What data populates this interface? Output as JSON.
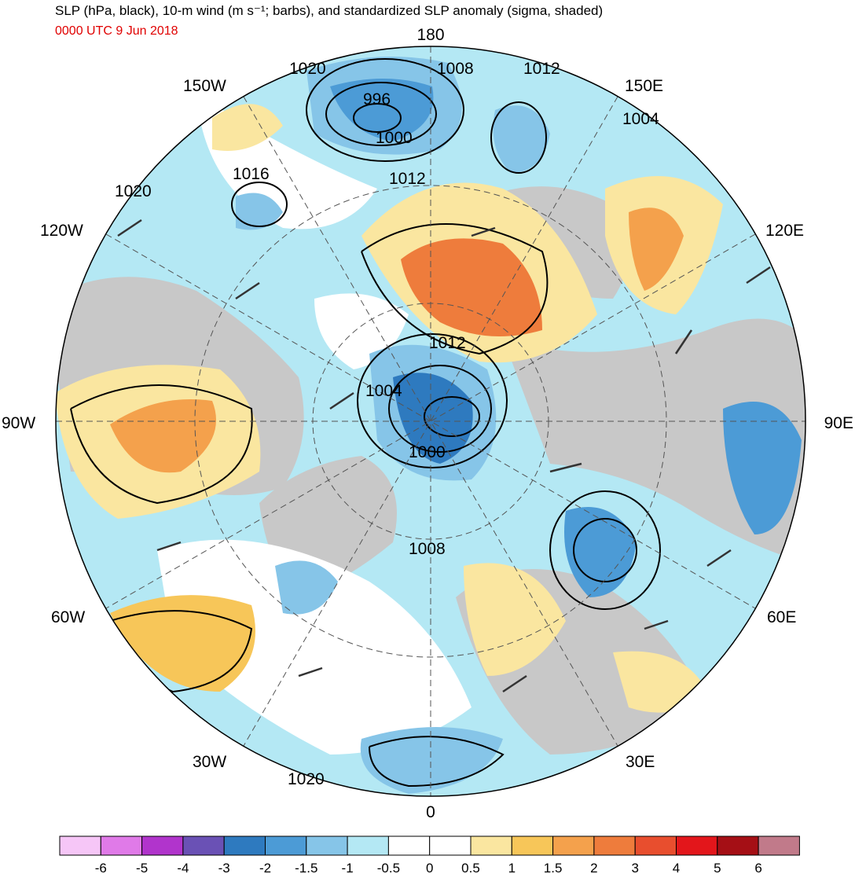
{
  "header": {
    "title": "SLP (hPa, black), 10-m wind (m s⁻¹; barbs), and standardized SLP anomaly (sigma, shaded)",
    "valid_time": "0000 UTC 9 Jun 2018"
  },
  "map": {
    "projection": "north polar stereographic",
    "longitude_labels": {
      "top": "180",
      "bottom": "0",
      "left": "90W",
      "right": "90E",
      "upper_left_outer": "150W",
      "upper_left_inner": "120W",
      "lower_left_upper": "60W",
      "lower_left_lower": "30W",
      "upper_right_outer": "150E",
      "upper_right_inner": "120E",
      "lower_right_upper": "60E",
      "lower_right_lower": "30E"
    },
    "isobar_labels": {
      "top_left": "1020",
      "top_center": "1008",
      "top_right": "1012",
      "low_center": "996",
      "low_lower": "1000",
      "right_1004": "1004",
      "west_1016": "1016",
      "west_1020": "1020",
      "north_1012": "1012",
      "pole_1012": "1012",
      "pole_1004": "1004",
      "pole_1000": "1000",
      "atlantic_1008": "1008",
      "bottom_1020": "1020"
    }
  },
  "legend": {
    "colors": [
      "#f6c6f7",
      "#e07ae8",
      "#b134cc",
      "#6a51b5",
      "#2e7abf",
      "#4c9bd6",
      "#86c5e8",
      "#b4e8f4",
      "#ffffff",
      "#ffffff",
      "#fae6a0",
      "#f7c659",
      "#f4a14c",
      "#ee7c3c",
      "#e84e2e",
      "#e3161b",
      "#a50f15",
      "#c17a8a"
    ],
    "labels": [
      "-6",
      "-5",
      "-4",
      "-3",
      "-2",
      "-1.5",
      "-1",
      "-0.5",
      "0",
      "0.5",
      "1",
      "1.5",
      "2",
      "3",
      "4",
      "5",
      "6"
    ]
  }
}
